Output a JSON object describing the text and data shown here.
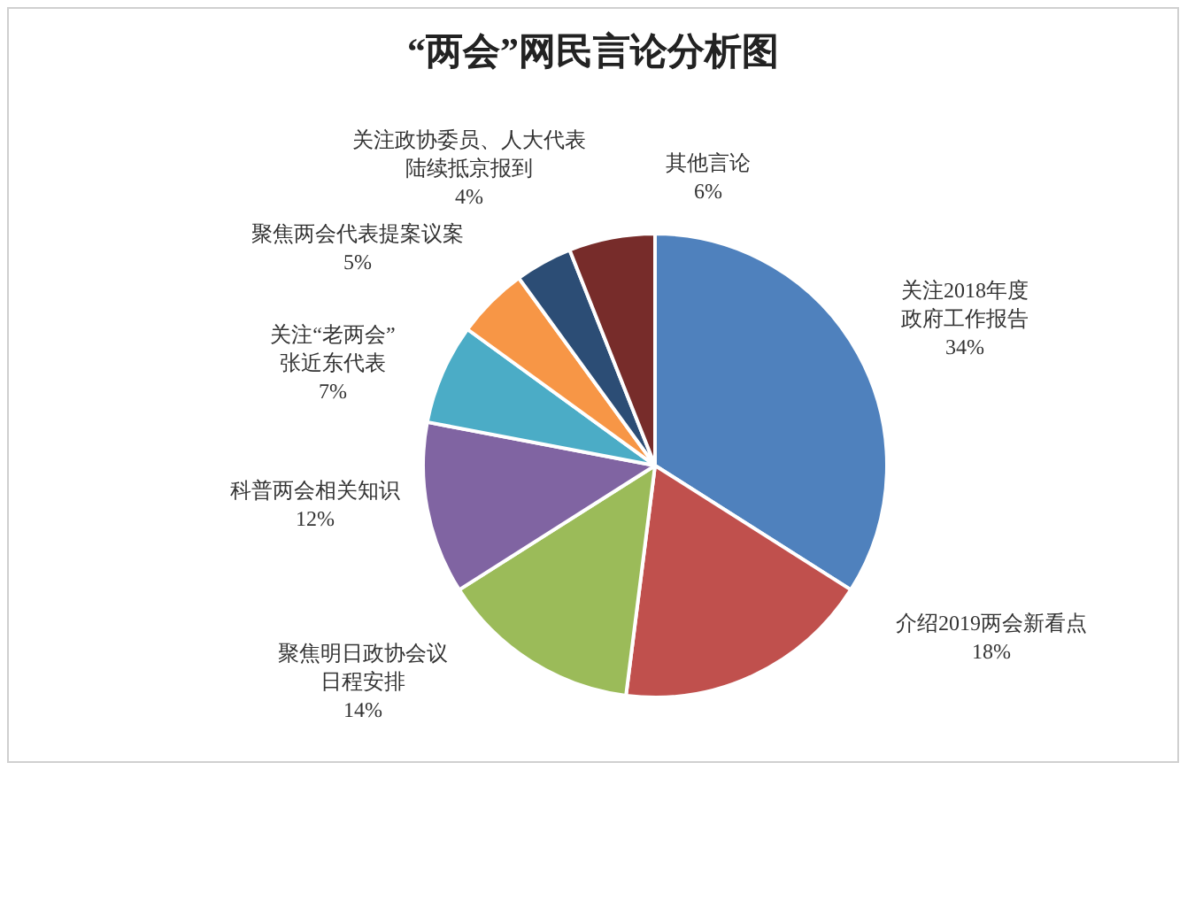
{
  "chart_data": {
    "type": "pie",
    "title": "“两会”网民言论分析图",
    "categories": [
      "关注2018年度政府工作报告",
      "介绍2019两会新看点",
      "聚焦明日政协会议日程安排",
      "科普两会相关知识",
      "关注“老两会”张近东代表",
      "聚焦两会代表提案议案",
      "关注政协委员、人大代表陆续抵京报到",
      "其他言论"
    ],
    "values": [
      34,
      18,
      14,
      12,
      7,
      5,
      4,
      6
    ],
    "value_labels": [
      "34%",
      "18%",
      "14%",
      "12%",
      "7%",
      "5%",
      "4%",
      "6%"
    ],
    "colors": [
      "#4f81bd",
      "#c0504d",
      "#9bbb59",
      "#8064a2",
      "#4bacc6",
      "#f79646",
      "#2c4d75",
      "#772c2a"
    ],
    "legend": false
  }
}
